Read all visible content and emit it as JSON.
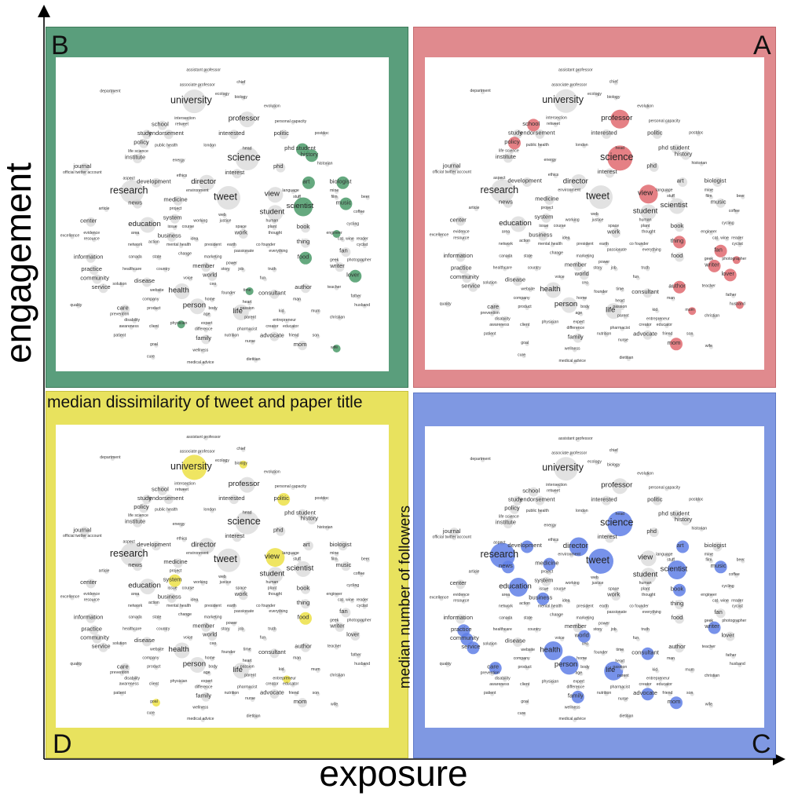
{
  "axis_titles": {
    "x": "exposure",
    "y": "engagement"
  },
  "panels": [
    {
      "id": "B",
      "letter": "B",
      "frame_color": "#5a9e7c",
      "accent": "#4a9a68",
      "border_color": "#3d7a58"
    },
    {
      "id": "A",
      "letter": "A",
      "frame_color": "#e08a8e",
      "accent": "#e06a70",
      "border_color": "#c46a6e"
    },
    {
      "id": "D",
      "letter": "D",
      "frame_color": "#e8e25e",
      "accent": "#ece046",
      "border_color": "#c7c23f"
    },
    {
      "id": "C",
      "letter": "C",
      "frame_color": "#7f98e2",
      "accent": "#5f7fe6",
      "border_color": "#5e78c6"
    }
  ],
  "band_labels": {
    "D_top": "median dissimilarity of tweet and paper title",
    "C_side": "median number of followers"
  },
  "terms": [
    {
      "t": "assistant professor",
      "s": 1
    },
    {
      "t": "associate professor",
      "s": 1
    },
    {
      "t": "chief",
      "s": 1
    },
    {
      "t": "department",
      "s": 1
    },
    {
      "t": "ecology",
      "s": 1
    },
    {
      "t": "biology",
      "s": 1
    },
    {
      "t": "university",
      "s": 4
    },
    {
      "t": "evolution",
      "s": 1
    },
    {
      "t": "professor",
      "s": 3
    },
    {
      "t": "intersection",
      "s": 1
    },
    {
      "t": "retweet",
      "s": 1
    },
    {
      "t": "personal capacity",
      "s": 1
    },
    {
      "t": "school",
      "s": 2
    },
    {
      "t": "endorsement",
      "s": 2
    },
    {
      "t": "interested",
      "s": 2
    },
    {
      "t": "politic",
      "s": 2
    },
    {
      "t": "postdoc",
      "s": 1
    },
    {
      "t": "study",
      "s": 2
    },
    {
      "t": "policy",
      "s": 2
    },
    {
      "t": "public health",
      "s": 1
    },
    {
      "t": "london",
      "s": 1
    },
    {
      "t": "head",
      "s": 1
    },
    {
      "t": "phd student",
      "s": 2
    },
    {
      "t": "life science",
      "s": 1
    },
    {
      "t": "history",
      "s": 2
    },
    {
      "t": "institute",
      "s": 2
    },
    {
      "t": "energy",
      "s": 1
    },
    {
      "t": "science",
      "s": 4
    },
    {
      "t": "historian",
      "s": 1
    },
    {
      "t": "journal",
      "s": 2
    },
    {
      "t": "phd",
      "s": 2
    },
    {
      "t": "official twitter account",
      "s": 1
    },
    {
      "t": "ethics",
      "s": 1
    },
    {
      "t": "interest",
      "s": 2
    },
    {
      "t": "aspect",
      "s": 1
    },
    {
      "t": "development",
      "s": 2
    },
    {
      "t": "director",
      "s": 3
    },
    {
      "t": "art",
      "s": 2
    },
    {
      "t": "biologist",
      "s": 2
    },
    {
      "t": "research",
      "s": 4
    },
    {
      "t": "environment",
      "s": 1
    },
    {
      "t": "language",
      "s": 1
    },
    {
      "t": "mine",
      "s": 1
    },
    {
      "t": "stuff",
      "s": 1
    },
    {
      "t": "film",
      "s": 1
    },
    {
      "t": "beer",
      "s": 1
    },
    {
      "t": "tweet",
      "s": 4
    },
    {
      "t": "view",
      "s": 3
    },
    {
      "t": "scientist",
      "s": 3
    },
    {
      "t": "music",
      "s": 2
    },
    {
      "t": "news",
      "s": 2
    },
    {
      "t": "medicine",
      "s": 2
    },
    {
      "t": "article",
      "s": 1
    },
    {
      "t": "project",
      "s": 1
    },
    {
      "t": "web",
      "s": 1
    },
    {
      "t": "student",
      "s": 3
    },
    {
      "t": "coffee",
      "s": 1
    },
    {
      "t": "center",
      "s": 2
    },
    {
      "t": "education",
      "s": 3
    },
    {
      "t": "system",
      "s": 2
    },
    {
      "t": "working",
      "s": 1
    },
    {
      "t": "justice",
      "s": 1
    },
    {
      "t": "human",
      "s": 1
    },
    {
      "t": "plant",
      "s": 1
    },
    {
      "t": "cycling",
      "s": 1
    },
    {
      "t": "issue",
      "s": 1
    },
    {
      "t": "course",
      "s": 1
    },
    {
      "t": "space",
      "s": 1
    },
    {
      "t": "book",
      "s": 2
    },
    {
      "t": "area",
      "s": 1
    },
    {
      "t": "work",
      "s": 2
    },
    {
      "t": "thought",
      "s": 1
    },
    {
      "t": "engineer",
      "s": 1
    },
    {
      "t": "evidence",
      "s": 1
    },
    {
      "t": "business",
      "s": 2
    },
    {
      "t": "cat",
      "s": 1
    },
    {
      "t": "wine",
      "s": 1
    },
    {
      "t": "reader",
      "s": 1
    },
    {
      "t": "resource",
      "s": 1
    },
    {
      "t": "action",
      "s": 1
    },
    {
      "t": "idea",
      "s": 1
    },
    {
      "t": "earth",
      "s": 1
    },
    {
      "t": "co founder",
      "s": 1
    },
    {
      "t": "thing",
      "s": 2
    },
    {
      "t": "excellence",
      "s": 1
    },
    {
      "t": "network",
      "s": 1
    },
    {
      "t": "mental health",
      "s": 1
    },
    {
      "t": "president",
      "s": 1
    },
    {
      "t": "cyclist",
      "s": 1
    },
    {
      "t": "passionate",
      "s": 1
    },
    {
      "t": "everything",
      "s": 1
    },
    {
      "t": "information",
      "s": 2
    },
    {
      "t": "change",
      "s": 1
    },
    {
      "t": "marketing",
      "s": 1
    },
    {
      "t": "canada",
      "s": 1
    },
    {
      "t": "state",
      "s": 1
    },
    {
      "t": "food",
      "s": 2
    },
    {
      "t": "fan",
      "s": 2
    },
    {
      "t": "geek",
      "s": 1
    },
    {
      "t": "photographer",
      "s": 1
    },
    {
      "t": "power",
      "s": 1
    },
    {
      "t": "member",
      "s": 2
    },
    {
      "t": "writer",
      "s": 2
    },
    {
      "t": "healthcare",
      "s": 1
    },
    {
      "t": "practice",
      "s": 2
    },
    {
      "t": "country",
      "s": 1
    },
    {
      "t": "story",
      "s": 1
    },
    {
      "t": "job",
      "s": 1
    },
    {
      "t": "truth",
      "s": 1
    },
    {
      "t": "community",
      "s": 2
    },
    {
      "t": "voice",
      "s": 1
    },
    {
      "t": "world",
      "s": 2
    },
    {
      "t": "lover",
      "s": 2
    },
    {
      "t": "ceo",
      "s": 1
    },
    {
      "t": "fun",
      "s": 1
    },
    {
      "t": "disease",
      "s": 2
    },
    {
      "t": "solution",
      "s": 1
    },
    {
      "t": "website",
      "s": 1
    },
    {
      "t": "service",
      "s": 2
    },
    {
      "t": "health",
      "s": 3
    },
    {
      "t": "founder",
      "s": 1
    },
    {
      "t": "time",
      "s": 1
    },
    {
      "t": "consultant",
      "s": 2
    },
    {
      "t": "author",
      "s": 2
    },
    {
      "t": "teacher",
      "s": 1
    },
    {
      "t": "company",
      "s": 1
    },
    {
      "t": "home",
      "s": 1
    },
    {
      "t": "heart",
      "s": 1
    },
    {
      "t": "man",
      "s": 1
    },
    {
      "t": "father",
      "s": 1
    },
    {
      "t": "quality",
      "s": 1
    },
    {
      "t": "care",
      "s": 2
    },
    {
      "t": "person",
      "s": 3
    },
    {
      "t": "body",
      "s": 1
    },
    {
      "t": "husband",
      "s": 1
    },
    {
      "t": "product",
      "s": 1
    },
    {
      "t": "life",
      "s": 3
    },
    {
      "t": "passion",
      "s": 1
    },
    {
      "t": "kid",
      "s": 1
    },
    {
      "t": "mum",
      "s": 1
    },
    {
      "t": "prevention",
      "s": 1
    },
    {
      "t": "age",
      "s": 1
    },
    {
      "t": "parent",
      "s": 1
    },
    {
      "t": "entrepreneur",
      "s": 1
    },
    {
      "t": "christian",
      "s": 1
    },
    {
      "t": "disability",
      "s": 1
    },
    {
      "t": "physician",
      "s": 1
    },
    {
      "t": "expert",
      "s": 1
    },
    {
      "t": "pharmacist",
      "s": 1
    },
    {
      "t": "creator",
      "s": 1
    },
    {
      "t": "educator",
      "s": 1
    },
    {
      "t": "awareness",
      "s": 1
    },
    {
      "t": "client",
      "s": 1
    },
    {
      "t": "difference",
      "s": 1
    },
    {
      "t": "advocate",
      "s": 2
    },
    {
      "t": "patient",
      "s": 1
    },
    {
      "t": "family",
      "s": 2
    },
    {
      "t": "nutrition",
      "s": 1
    },
    {
      "t": "nurse",
      "s": 1
    },
    {
      "t": "friend",
      "s": 1
    },
    {
      "t": "son",
      "s": 1
    },
    {
      "t": "goal",
      "s": 1
    },
    {
      "t": "mom",
      "s": 2
    },
    {
      "t": "wife",
      "s": 1
    },
    {
      "t": "wellness",
      "s": 1
    },
    {
      "t": "cure",
      "s": 1
    },
    {
      "t": "medical advice",
      "s": 1
    },
    {
      "t": "dietitian",
      "s": 1
    }
  ],
  "highlights": {
    "B": [
      "biologist",
      "scientist",
      "food",
      "lover",
      "music",
      "engineer",
      "art",
      "history",
      "phd student",
      "time",
      "wife",
      "physician"
    ],
    "A": [
      "professor",
      "view",
      "science",
      "writer",
      "fan",
      "author",
      "thing",
      "lover",
      "school",
      "policy",
      "mom",
      "mum",
      "husband",
      "photographer"
    ],
    "D": [
      "university",
      "view",
      "biology",
      "system",
      "politic",
      "food",
      "entrepreneur",
      "goal"
    ],
    "C": [
      "tweet",
      "science",
      "research",
      "health",
      "person",
      "life",
      "director",
      "news",
      "education",
      "development",
      "care",
      "world",
      "practice",
      "community",
      "service",
      "medicine",
      "business",
      "family",
      "advocate",
      "mom",
      "scientist",
      "music",
      "book",
      "writer",
      "art",
      "consultant"
    ]
  }
}
